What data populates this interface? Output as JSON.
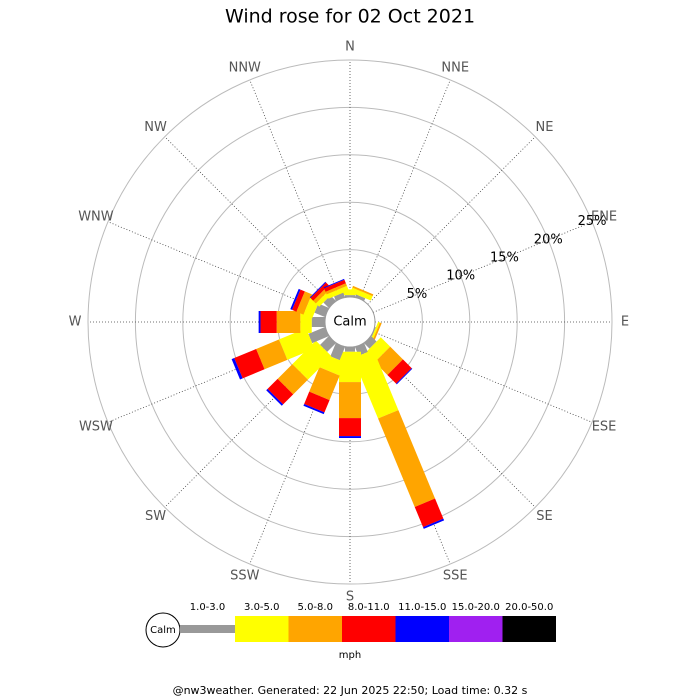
{
  "chart_data": {
    "type": "windrose",
    "title": "Wind rose for 02 Oct 2021",
    "calm_label": "Calm",
    "unit_label": "mph",
    "footer": "@nw3weather. Generated: 22 Jun 2025 22:50; Load time: 0.32 s",
    "categories": [
      "N",
      "NNE",
      "NE",
      "ENE",
      "E",
      "ESE",
      "SE",
      "SSE",
      "S",
      "SSW",
      "SW",
      "WSW",
      "W",
      "WNW",
      "NW",
      "NNW"
    ],
    "rlim": [
      0,
      25
    ],
    "rticks": [
      {
        "value": 5,
        "label": "5%"
      },
      {
        "value": 10,
        "label": "10%"
      },
      {
        "value": 15,
        "label": "15%"
      },
      {
        "value": 20,
        "label": "20%"
      },
      {
        "value": 25,
        "label": "25%"
      }
    ],
    "grid": true,
    "series": [
      {
        "name": "1.0-3.0",
        "color": "#999999",
        "values": [
          0.2,
          0.3,
          0,
          0,
          0,
          0.1,
          0.8,
          1,
          0.5,
          1.5,
          1.3,
          1.9,
          1.4,
          1.2,
          0.8,
          0.5
        ]
      },
      {
        "name": "3.0-5.0",
        "color": "#ffff00",
        "values": [
          0.6,
          0.5,
          0,
          0,
          0,
          0.2,
          1.4,
          6.9,
          3.2,
          1.5,
          3.5,
          3.1,
          1.2,
          1.0,
          0.5,
          0.5
        ]
      },
      {
        "name": "5.0-8.0",
        "color": "#ffa500",
        "values": [
          0,
          0.2,
          0,
          0,
          0,
          0.2,
          1.9,
          10.1,
          3.8,
          2.8,
          2.2,
          2.6,
          2.5,
          0.8,
          0.4,
          0.3
        ]
      },
      {
        "name": "8.0-11.0",
        "color": "#ff0000",
        "values": [
          0,
          0,
          0,
          0,
          0,
          0,
          1.3,
          2.3,
          1.9,
          1.4,
          1.5,
          2.5,
          1.7,
          0.5,
          0.4,
          0.4
        ]
      },
      {
        "name": "11.0-15.0",
        "color": "#0000ff",
        "values": [
          0,
          0,
          0,
          0,
          0,
          0,
          0.1,
          0.2,
          0.2,
          0.2,
          0.2,
          0.3,
          0.2,
          0.2,
          0.1,
          0.1
        ]
      },
      {
        "name": "15.0-20.0",
        "color": "#a020f0",
        "values": [
          0,
          0,
          0,
          0,
          0,
          0,
          0,
          0,
          0,
          0,
          0,
          0,
          0,
          0,
          0,
          0
        ]
      },
      {
        "name": "20.0-50.0",
        "color": "#000000",
        "values": [
          0,
          0,
          0,
          0,
          0,
          0,
          0,
          0,
          0,
          0,
          0,
          0,
          0,
          0,
          0,
          0
        ]
      }
    ]
  }
}
